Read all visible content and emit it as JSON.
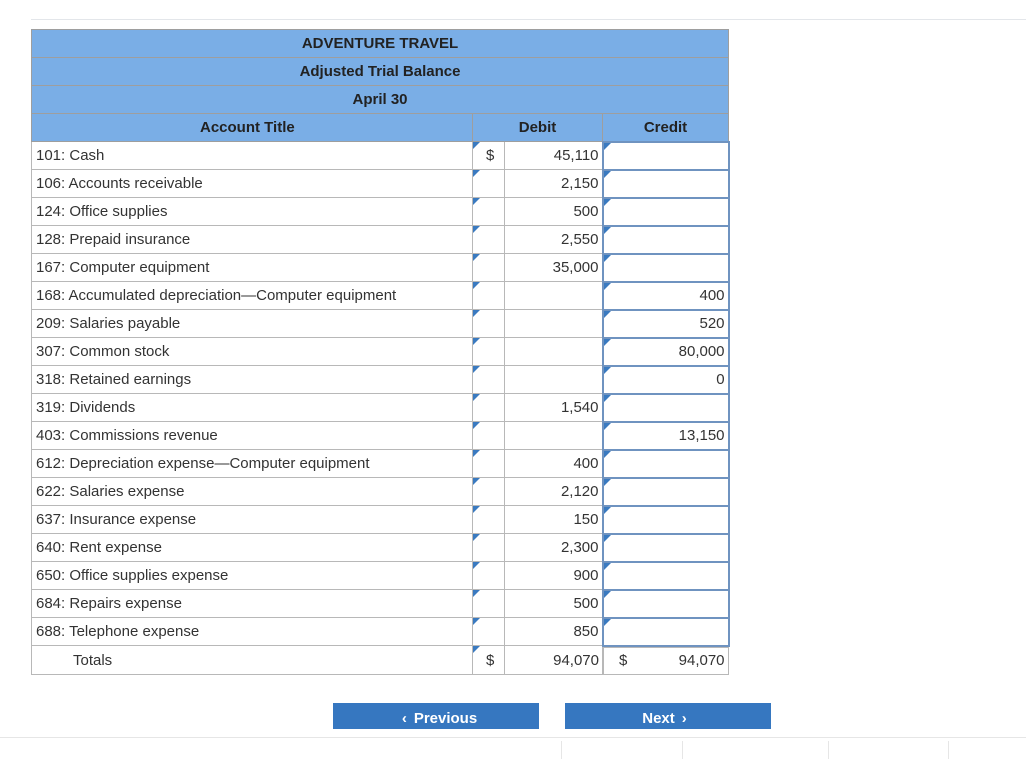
{
  "header": {
    "company": "ADVENTURE TRAVEL",
    "statement": "Adjusted Trial Balance",
    "date": "April 30"
  },
  "columns": {
    "account": "Account Title",
    "debit": "Debit",
    "credit": "Credit"
  },
  "rows": [
    {
      "account": "101: Cash",
      "currency": "$",
      "debit": "45,110",
      "credit": ""
    },
    {
      "account": "106: Accounts receivable",
      "currency": "",
      "debit": "2,150",
      "credit": ""
    },
    {
      "account": "124: Office supplies",
      "currency": "",
      "debit": "500",
      "credit": ""
    },
    {
      "account": "128: Prepaid insurance",
      "currency": "",
      "debit": "2,550",
      "credit": ""
    },
    {
      "account": "167: Computer equipment",
      "currency": "",
      "debit": "35,000",
      "credit": ""
    },
    {
      "account": "168: Accumulated depreciation—Computer equipment",
      "currency": "",
      "debit": "",
      "credit": "400"
    },
    {
      "account": "209: Salaries payable",
      "currency": "",
      "debit": "",
      "credit": "520"
    },
    {
      "account": "307: Common stock",
      "currency": "",
      "debit": "",
      "credit": "80,000"
    },
    {
      "account": "318: Retained earnings",
      "currency": "",
      "debit": "",
      "credit": "0"
    },
    {
      "account": "319: Dividends",
      "currency": "",
      "debit": "1,540",
      "credit": ""
    },
    {
      "account": "403: Commissions revenue",
      "currency": "",
      "debit": "",
      "credit": "13,150"
    },
    {
      "account": "612: Depreciation expense—Computer equipment",
      "currency": "",
      "debit": "400",
      "credit": ""
    },
    {
      "account": "622: Salaries expense",
      "currency": "",
      "debit": "2,120",
      "credit": ""
    },
    {
      "account": "637: Insurance expense",
      "currency": "",
      "debit": "150",
      "credit": ""
    },
    {
      "account": "640: Rent expense",
      "currency": "",
      "debit": "2,300",
      "credit": ""
    },
    {
      "account": "650: Office supplies expense",
      "currency": "",
      "debit": "900",
      "credit": ""
    },
    {
      "account": "684: Repairs expense",
      "currency": "",
      "debit": "500",
      "credit": ""
    },
    {
      "account": "688: Telephone expense",
      "currency": "",
      "debit": "850",
      "credit": ""
    }
  ],
  "totals": {
    "label": "Totals",
    "debit_currency": "$",
    "debit": "94,070",
    "credit_currency": "$",
    "credit": "94,070"
  },
  "nav": {
    "previous_label": "Previous",
    "previous_icon": "‹",
    "next_label": "Next",
    "next_icon": "›"
  },
  "colors": {
    "header_bg": "#7aaee6",
    "button_bg": "#3677c0",
    "marker": "#3a7ac0"
  }
}
